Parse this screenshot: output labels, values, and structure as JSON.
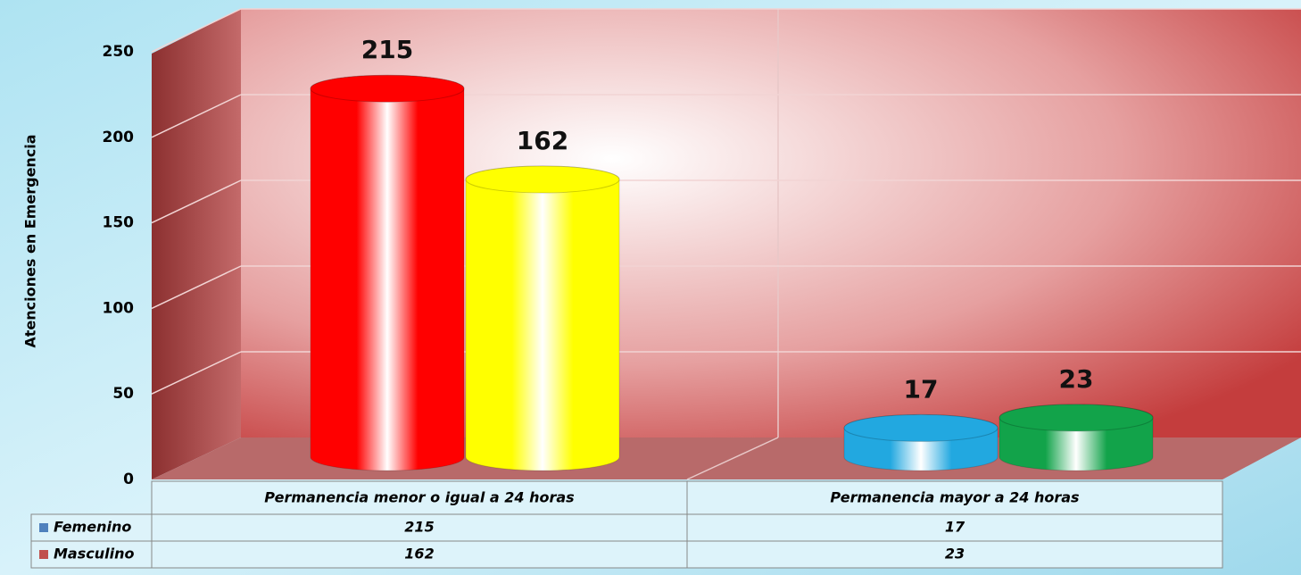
{
  "chart_data": {
    "type": "cylinder",
    "ylabel": "Atenciones en Emergencia",
    "categories": [
      "Permanencia menor o igual a 24 horas",
      "Permanencia mayor a 24 horas"
    ],
    "series": [
      {
        "name": "Femenino",
        "color": "#4f81bd",
        "values": [
          215,
          17
        ],
        "bar_colors": [
          "#ff0000",
          "#22a8e0"
        ]
      },
      {
        "name": "Masculino",
        "color": "#c0504d",
        "values": [
          162,
          23
        ],
        "bar_colors": [
          "#ffff00",
          "#12a34a"
        ]
      }
    ],
    "ylim": [
      0,
      250
    ],
    "yticks": [
      0,
      50,
      100,
      150,
      200,
      250
    ],
    "grid": true
  }
}
